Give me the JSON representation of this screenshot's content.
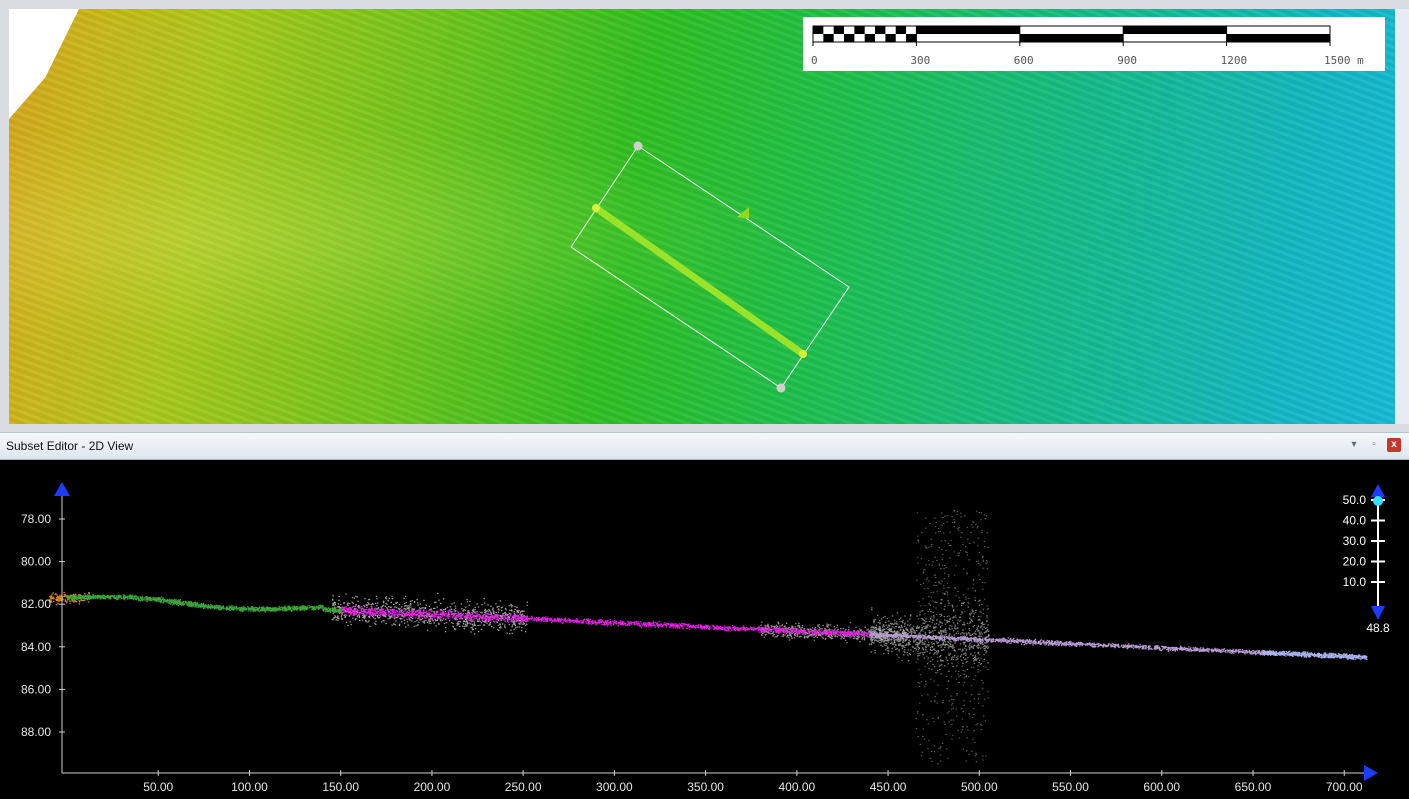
{
  "map": {
    "scalebar": {
      "labels": [
        "0",
        "300",
        "600",
        "900",
        "1200",
        "1500 m"
      ]
    }
  },
  "editor": {
    "title": "Subset Editor - 2D View",
    "controls": {
      "pin": "▾",
      "float": "▫",
      "close": "x"
    }
  },
  "profile": {
    "y_ticks": [
      "78.00",
      "80.00",
      "82.00",
      "84.00",
      "86.00",
      "88.00"
    ],
    "x_ticks": [
      "50.00",
      "100.00",
      "150.00",
      "200.00",
      "250.00",
      "300.00",
      "350.00",
      "400.00",
      "450.00",
      "500.00",
      "550.00",
      "600.00",
      "650.00",
      "700.00"
    ],
    "z_scale": {
      "ticks": [
        "50.0",
        "40.0",
        "30.0",
        "20.0",
        "10.0"
      ],
      "value": "48.8"
    },
    "colors": {
      "green": "#3aa63a",
      "orange": "#e08a20",
      "magenta": "#e81ce8",
      "violet": "#b99ad4",
      "lavender": "#a7b2ee",
      "grey": "#cfcfcf",
      "blue": "#1e3cff",
      "cyan": "#33e0ff"
    }
  }
}
